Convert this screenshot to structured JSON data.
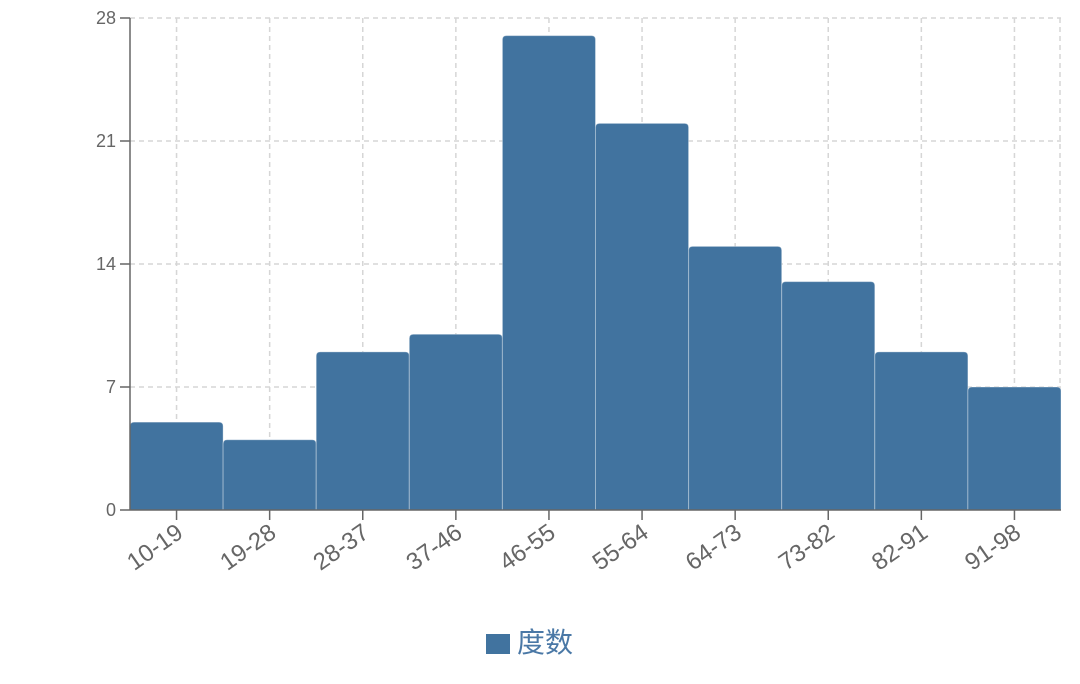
{
  "chart_data": {
    "type": "bar",
    "title": "",
    "xlabel": "",
    "ylabel": "",
    "categories": [
      "10-19",
      "19-28",
      "28-37",
      "37-46",
      "46-55",
      "55-64",
      "64-73",
      "73-82",
      "82-91",
      "91-98"
    ],
    "series": [
      {
        "name": "度数",
        "values": [
          5,
          4,
          9,
          10,
          27,
          22,
          15,
          13,
          9,
          7
        ]
      }
    ],
    "ylim": [
      0,
      28
    ],
    "yticks": [
      "0",
      "7",
      "14",
      "21",
      "28"
    ],
    "grid": true,
    "legend_position": "bottom",
    "colors": {
      "bar": "#41739f",
      "bar_edge": "#ffffff",
      "grid": "#d6d6d6",
      "axis": "#666666",
      "legend_text": "#4a78a6"
    }
  }
}
